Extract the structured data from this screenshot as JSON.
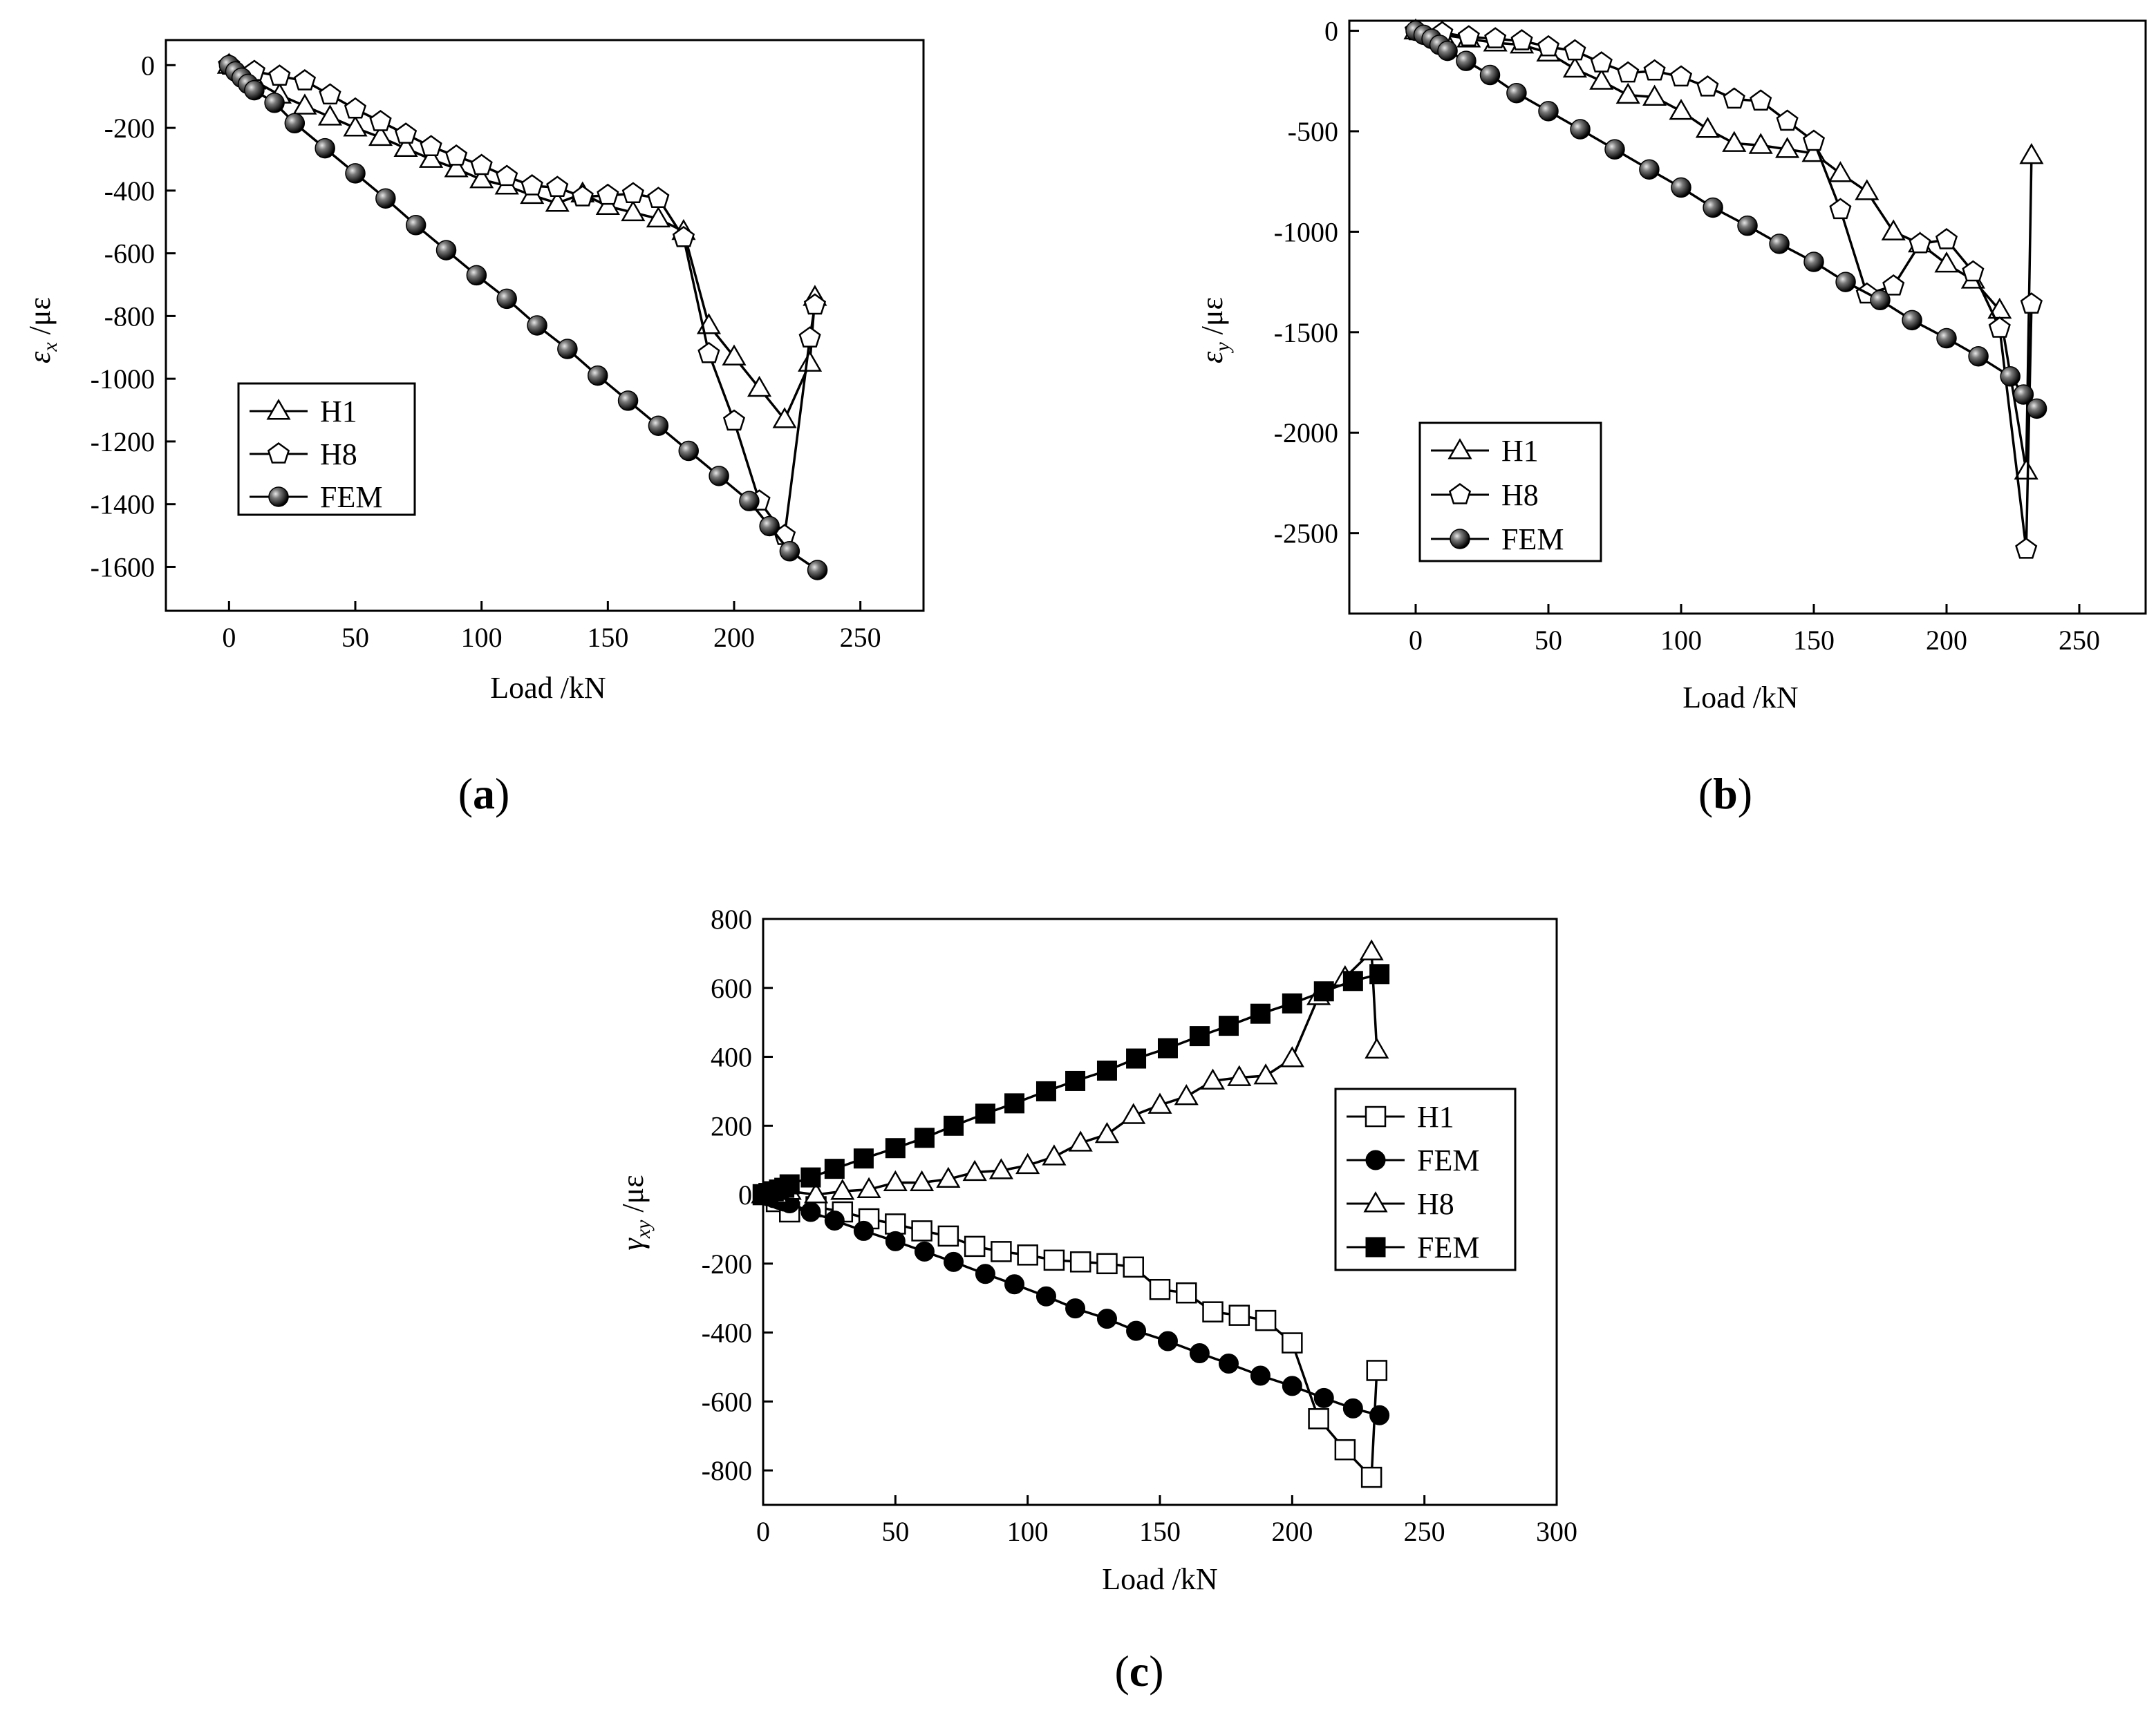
{
  "chart_data": [
    {
      "type": "line",
      "panel": "(a)",
      "caption_open": "(",
      "caption_letter": "a",
      "caption_close": ")",
      "xlabel": "Load /kN",
      "ylabel_symbol": "ε",
      "ylabel_sub": "x",
      "ylabel_unit": " /με",
      "xlim": [
        -25,
        275
      ],
      "ylim": [
        -1740,
        80
      ],
      "xticks": [
        0,
        50,
        100,
        150,
        200,
        250
      ],
      "yticks": [
        0,
        -200,
        -400,
        -600,
        -800,
        -1000,
        -1200,
        -1400,
        -1600
      ],
      "legend_position": "lower-left",
      "series": [
        {
          "name": "H1",
          "marker": "triangle-open",
          "x": [
            0,
            10,
            20,
            30,
            40,
            50,
            60,
            70,
            80,
            90,
            100,
            110,
            120,
            130,
            140,
            150,
            160,
            170,
            180,
            190,
            200,
            210,
            220,
            230,
            232
          ],
          "y": [
            0,
            -50,
            -95,
            -130,
            -165,
            -200,
            -230,
            -265,
            -300,
            -330,
            -365,
            -385,
            -415,
            -440,
            -410,
            -450,
            -470,
            -490,
            -530,
            -830,
            -930,
            -1030,
            -1130,
            -950,
            -740
          ]
        },
        {
          "name": "H8",
          "marker": "pentagon-open",
          "x": [
            0,
            10,
            20,
            30,
            40,
            50,
            60,
            70,
            80,
            90,
            100,
            110,
            120,
            130,
            140,
            150,
            160,
            170,
            180,
            190,
            200,
            210,
            220,
            230,
            232
          ],
          "y": [
            0,
            -20,
            -35,
            -50,
            -95,
            -140,
            -180,
            -220,
            -260,
            -290,
            -320,
            -355,
            -385,
            -390,
            -420,
            -415,
            -410,
            -425,
            -550,
            -920,
            -1135,
            -1390,
            -1500,
            -870,
            -765
          ]
        },
        {
          "name": "FEM",
          "marker": "sphere-filled",
          "x": [
            0,
            2.5,
            5,
            7.5,
            10,
            18,
            26,
            38,
            50,
            62,
            74,
            86,
            98,
            110,
            122,
            134,
            146,
            158,
            170,
            182,
            194,
            206,
            214,
            222,
            233
          ],
          "y": [
            0,
            -20,
            -40,
            -60,
            -80,
            -120,
            -185,
            -265,
            -345,
            -425,
            -510,
            -590,
            -670,
            -745,
            -830,
            -905,
            -990,
            -1070,
            -1150,
            -1230,
            -1310,
            -1390,
            -1470,
            -1550,
            -1610
          ]
        }
      ]
    },
    {
      "type": "line",
      "panel": "(b)",
      "caption_open": "(",
      "caption_letter": "b",
      "caption_close": ")",
      "xlabel": "Load /kN",
      "ylabel_symbol": "ε",
      "ylabel_sub": "y",
      "ylabel_unit": " /με",
      "xlim": [
        -25,
        275
      ],
      "ylim": [
        -2900,
        50
      ],
      "xticks": [
        0,
        50,
        100,
        150,
        200,
        250
      ],
      "yticks": [
        0,
        -500,
        -1000,
        -1500,
        -2000,
        -2500
      ],
      "legend_position": "lower-left",
      "series": [
        {
          "name": "H1",
          "marker": "triangle-open",
          "x": [
            0,
            10,
            20,
            30,
            40,
            50,
            60,
            70,
            80,
            90,
            100,
            110,
            120,
            130,
            140,
            150,
            160,
            170,
            180,
            190,
            200,
            210,
            220,
            230,
            232
          ],
          "y": [
            0,
            -20,
            -40,
            -60,
            -70,
            -110,
            -190,
            -250,
            -320,
            -330,
            -400,
            -490,
            -560,
            -570,
            -590,
            -610,
            -710,
            -800,
            -1000,
            -1060,
            -1160,
            -1240,
            -1390,
            -2190,
            -620
          ]
        },
        {
          "name": "H8",
          "marker": "pentagon-open",
          "x": [
            0,
            10,
            20,
            30,
            40,
            50,
            60,
            70,
            80,
            90,
            100,
            110,
            120,
            130,
            140,
            150,
            160,
            170,
            180,
            190,
            200,
            210,
            220,
            230,
            232
          ],
          "y": [
            0,
            -10,
            -30,
            -40,
            -50,
            -80,
            -100,
            -160,
            -210,
            -200,
            -230,
            -280,
            -340,
            -350,
            -450,
            -550,
            -890,
            -1310,
            -1270,
            -1060,
            -1040,
            -1200,
            -1480,
            -2580,
            -1360
          ]
        },
        {
          "name": "FEM",
          "marker": "sphere-filled",
          "x": [
            0,
            3,
            6,
            9,
            12,
            19,
            28,
            38,
            50,
            62,
            75,
            88,
            100,
            112,
            125,
            137,
            150,
            162,
            175,
            187,
            200,
            212,
            224,
            229,
            234
          ],
          "y": [
            0,
            -20,
            -40,
            -70,
            -100,
            -150,
            -220,
            -310,
            -400,
            -490,
            -590,
            -690,
            -780,
            -880,
            -970,
            -1060,
            -1150,
            -1250,
            -1340,
            -1440,
            -1530,
            -1620,
            -1720,
            -1810,
            -1880
          ]
        }
      ]
    },
    {
      "type": "line",
      "panel": "(c)",
      "caption_open": "(",
      "caption_letter": "c",
      "caption_close": ")",
      "xlabel": "Load /kN",
      "ylabel_symbol": "γ",
      "ylabel_sub": "xy",
      "ylabel_unit": " /με",
      "xlim": [
        0,
        300
      ],
      "ylim": [
        -900,
        800
      ],
      "xticks": [
        0,
        50,
        100,
        150,
        200,
        250,
        300
      ],
      "yticks": [
        800,
        600,
        400,
        200,
        0,
        -200,
        -400,
        -600,
        -800
      ],
      "legend_position": "right",
      "series": [
        {
          "name": "H1",
          "marker": "square-open",
          "x": [
            0,
            5,
            10,
            20,
            30,
            40,
            50,
            60,
            70,
            80,
            90,
            100,
            110,
            120,
            130,
            140,
            150,
            160,
            170,
            180,
            190,
            200,
            210,
            220,
            230,
            232
          ],
          "y": [
            0,
            -20,
            -50,
            -35,
            -50,
            -70,
            -85,
            -105,
            -120,
            -150,
            -165,
            -175,
            -190,
            -195,
            -200,
            -210,
            -275,
            -285,
            -340,
            -350,
            -365,
            -430,
            -650,
            -740,
            -820,
            -510
          ]
        },
        {
          "name": "FEM",
          "marker": "circle-filled",
          "x": [
            0,
            2,
            4,
            6,
            8,
            10,
            18,
            27,
            38,
            50,
            61,
            72,
            84,
            95,
            107,
            118,
            130,
            141,
            153,
            165,
            176,
            188,
            200,
            212,
            223,
            233
          ],
          "y": [
            0,
            -5,
            -10,
            -15,
            -20,
            -25,
            -50,
            -75,
            -105,
            -135,
            -165,
            -195,
            -230,
            -260,
            -295,
            -330,
            -360,
            -395,
            -425,
            -460,
            -490,
            -525,
            -555,
            -590,
            -620,
            -640
          ]
        },
        {
          "name": "H8",
          "marker": "triangle-open",
          "x": [
            0,
            5,
            10,
            20,
            30,
            40,
            50,
            60,
            70,
            80,
            90,
            100,
            110,
            120,
            130,
            140,
            150,
            160,
            170,
            180,
            190,
            200,
            210,
            220,
            230,
            232
          ],
          "y": [
            0,
            0,
            10,
            0,
            10,
            15,
            35,
            35,
            45,
            65,
            70,
            85,
            110,
            150,
            175,
            230,
            260,
            285,
            330,
            340,
            345,
            395,
            575,
            630,
            705,
            420
          ]
        },
        {
          "name": "FEM",
          "marker": "square-filled",
          "x": [
            0,
            2,
            4,
            6,
            8,
            10,
            18,
            27,
            38,
            50,
            61,
            72,
            84,
            95,
            107,
            118,
            130,
            141,
            153,
            165,
            176,
            188,
            200,
            212,
            223,
            233
          ],
          "y": [
            0,
            5,
            10,
            15,
            20,
            30,
            50,
            75,
            105,
            135,
            165,
            200,
            235,
            265,
            300,
            330,
            360,
            395,
            425,
            460,
            490,
            525,
            555,
            590,
            620,
            640
          ]
        }
      ]
    }
  ]
}
